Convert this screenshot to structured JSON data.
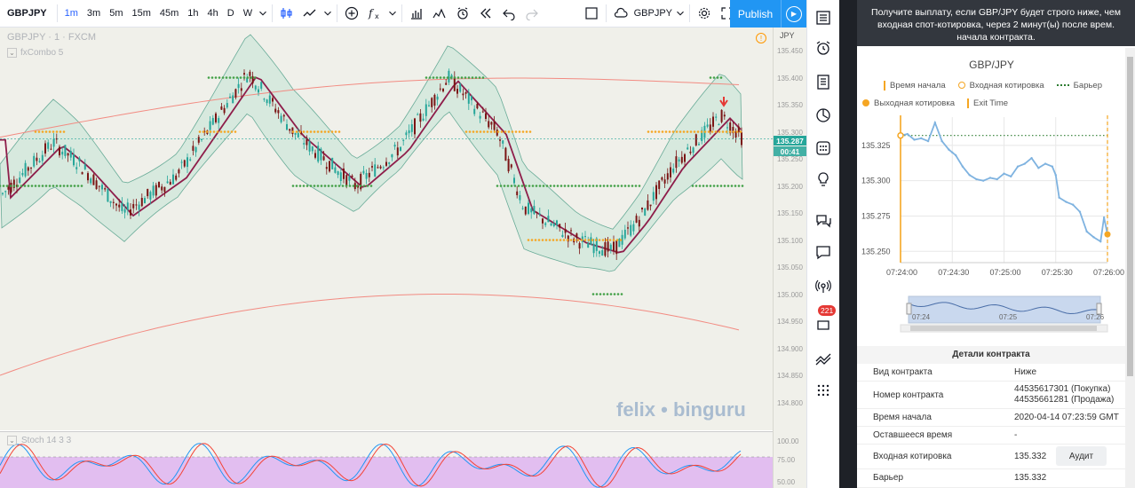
{
  "toolbar": {
    "symbol": "GBPJPY",
    "intervals": [
      "1m",
      "3m",
      "5m",
      "15m",
      "45m",
      "1h",
      "4h",
      "D",
      "W"
    ],
    "selected_interval": "1m",
    "compare_symbol": "GBPJPY",
    "publish_label": "Publish"
  },
  "chart": {
    "legend_symbol": "GBPJPY · 1 · FXCM",
    "indicator_label": "fxCombo 5",
    "currency": "JPY",
    "price_ticks": [
      "135.450",
      "135.400",
      "135.350",
      "135.300",
      "135.250",
      "135.200",
      "135.150",
      "135.100",
      "135.050",
      "135.000",
      "134.950",
      "134.900",
      "134.850",
      "134.800"
    ],
    "last_price_label": "135.287",
    "countdown_label": "00:41",
    "watermark": "felix • binguru",
    "colors": {
      "bg": "#f0f0ea",
      "up": "#26a69a",
      "down": "#7b1515",
      "band": "#d3e8dc",
      "sma": "#8e1d4a",
      "signal": "#43a047",
      "orange": "#f5a623",
      "envelope": "#f28b82"
    },
    "stoch": {
      "label": "Stoch 14 3 3",
      "ticks": [
        "100.00",
        "75.00",
        "50.00"
      ],
      "colors": {
        "k": "#2196f3",
        "d": "#f44336",
        "band": "#e0b8f0"
      }
    }
  },
  "rail": {
    "badge": "221"
  },
  "panel": {
    "notice": "Получите выплату, если GBP/JPY будет строго ниже, чем входная спот-котировка, через 2 минут(ы) после врем. начала контракта.",
    "chart_title": "GBP/JPY",
    "legend": {
      "start_time": "Время начала",
      "entry_quote": "Входная котировка",
      "barrier": "Барьер",
      "exit_quote": "Выходная котировка",
      "exit_time": "Exit Time"
    },
    "chart_data": {
      "type": "line",
      "y_ticks": [
        "135.325",
        "135.300",
        "135.275",
        "135.250"
      ],
      "x_ticks": [
        "07:24:00",
        "07:24:30",
        "07:25:00",
        "07:25:30",
        "07:26:00"
      ],
      "ylim": [
        135.242,
        135.345
      ],
      "barrier": 135.332,
      "series": [
        {
          "x_seconds": [
            0,
            4,
            8,
            12,
            16,
            20,
            24,
            28,
            30,
            32,
            36,
            40,
            44,
            48,
            52,
            56,
            60,
            64,
            68,
            72,
            76,
            80,
            84,
            88,
            90,
            92,
            96,
            100,
            104,
            108,
            112,
            116,
            118,
            120
          ],
          "y": [
            135.332,
            135.333,
            135.329,
            135.33,
            135.328,
            135.341,
            135.328,
            135.322,
            135.32,
            135.318,
            135.31,
            135.304,
            135.301,
            135.3,
            135.302,
            135.301,
            135.305,
            135.303,
            135.31,
            135.312,
            135.316,
            135.309,
            135.312,
            135.31,
            135.304,
            135.288,
            135.285,
            135.283,
            135.278,
            135.264,
            135.26,
            135.257,
            135.274,
            135.262
          ]
        }
      ]
    },
    "navigator_ticks": [
      "07:24",
      "07:25",
      "07:26"
    ],
    "details_title": "Детали контракта",
    "details": [
      {
        "key": "Вид контракта",
        "value": "Ниже"
      },
      {
        "key": "Номер контракта",
        "value": "44535617301 (Покупка)",
        "value2": "44535661281 (Продажа)"
      },
      {
        "key": "Время начала",
        "value": "2020-04-14 07:23:59 GMT"
      },
      {
        "key": "Оставшееся время",
        "value": "-"
      },
      {
        "key": "Входная котировка",
        "value": "135.332"
      },
      {
        "key": "Барьер",
        "value": "135.332"
      }
    ],
    "audit_label": "Аудит"
  }
}
